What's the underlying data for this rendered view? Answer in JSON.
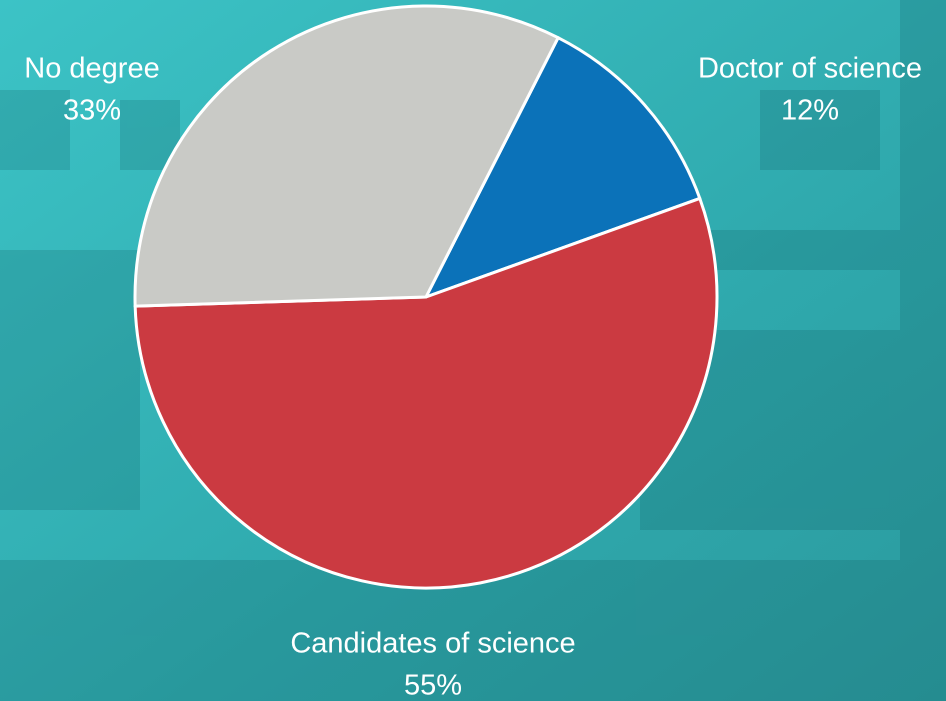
{
  "chart_data": {
    "type": "pie",
    "categories": [
      "Doctor of science",
      "Candidates of science",
      "No degree"
    ],
    "values": [
      12,
      55,
      33
    ],
    "value_labels": [
      "12%",
      "55%",
      "33%"
    ],
    "colors": [
      "#0b72b9",
      "#cb3a41",
      "#c9cac6"
    ]
  }
}
